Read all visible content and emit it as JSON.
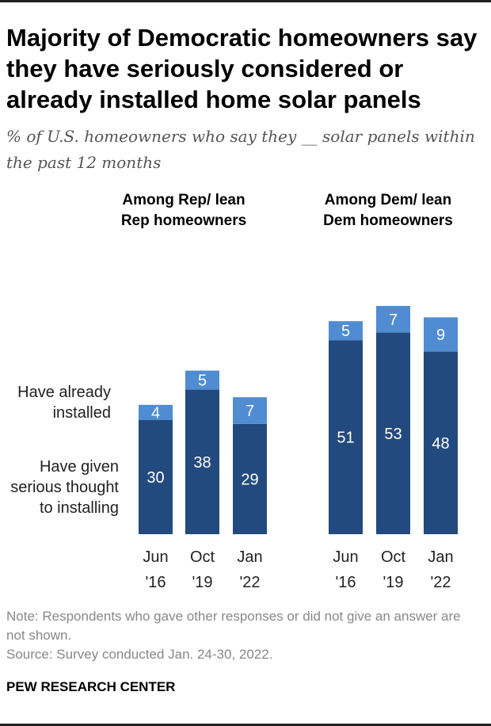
{
  "title": "Majority of Democratic homeowners say they have seriously considered or already installed home solar panels",
  "subtitle": "% of U.S. homeowners who say they __ solar panels within the past 12 months",
  "legend": {
    "installed": "Have already installed",
    "considered": "Have given serious thought to installing"
  },
  "colors": {
    "considered": "#234a7e",
    "installed": "#4f8cd2",
    "label_text": "#ffffff"
  },
  "chart_data": {
    "type": "bar",
    "stacked": true,
    "categories": [
      "Jun '16",
      "Oct '19",
      "Jan '22"
    ],
    "groups": [
      {
        "name": "Among Rep/ lean Rep homeowners",
        "series": [
          {
            "name": "Have given serious thought to installing",
            "values": [
              30,
              38,
              29
            ]
          },
          {
            "name": "Have already installed",
            "values": [
              4,
              5,
              7
            ]
          }
        ]
      },
      {
        "name": "Among Dem/ lean Dem homeowners",
        "series": [
          {
            "name": "Have given serious thought to installing",
            "values": [
              51,
              53,
              48
            ]
          },
          {
            "name": "Have already installed",
            "values": [
              5,
              7,
              9
            ]
          }
        ]
      }
    ],
    "ylim": [
      0,
      60
    ]
  },
  "category_lines": [
    [
      "Jun",
      "'16"
    ],
    [
      "Oct",
      "'19"
    ],
    [
      "Jan",
      "'22"
    ]
  ],
  "notes": {
    "note": "Note: Respondents who gave other responses or did not give an answer are not shown.",
    "source": "Source: Survey conducted Jan. 24-30, 2022."
  },
  "brand": "PEW RESEARCH CENTER"
}
